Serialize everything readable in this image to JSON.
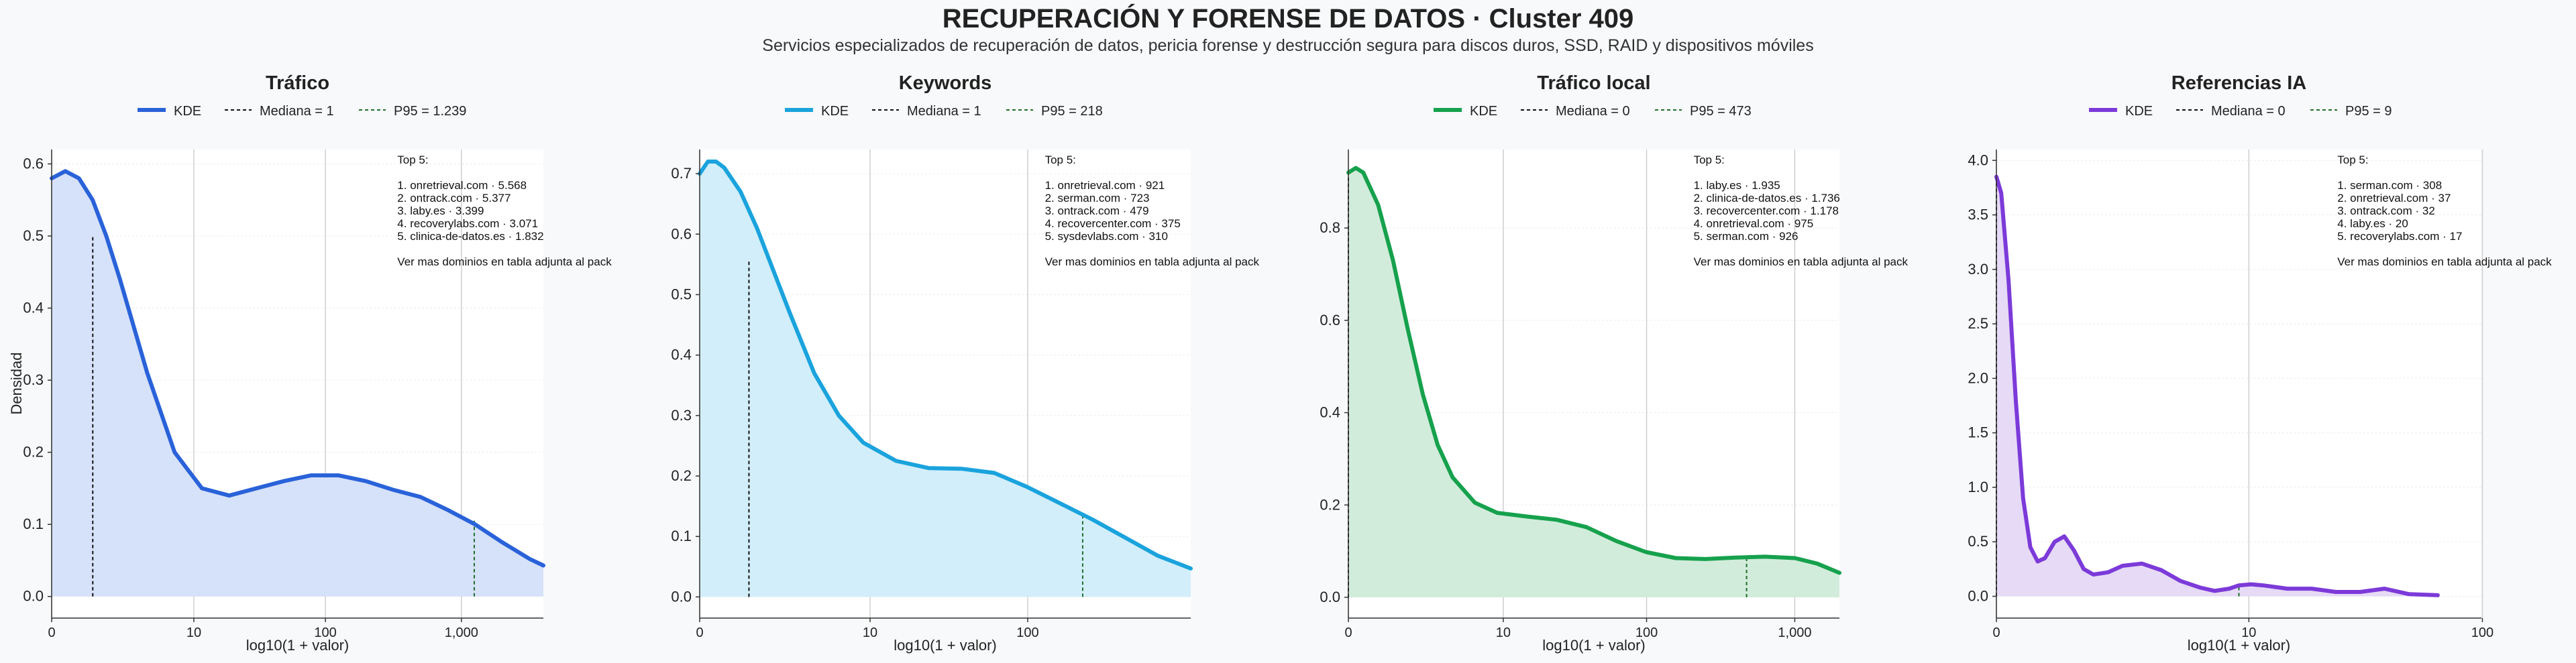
{
  "title": "RECUPERACIÓN Y FORENSE DE DATOS · Cluster 409",
  "subtitle": "Servicios especializados de recuperación de datos, pericia forense y destrucción segura para discos duros, SSD, RAID y dispositivos móviles",
  "colors": {
    "trafico": "#2962d9",
    "keywords": "#1aa3dd",
    "local": "#16a14d",
    "ia": "#7c3ad9"
  },
  "chart_data": [
    {
      "type": "area",
      "title": "Tráfico",
      "xlabel": "log10(1 + valor)",
      "ylabel": "Densidad",
      "color": "#2962d9",
      "fill": "#d6e1fa",
      "xlim": [
        0,
        3.6
      ],
      "ylim": [
        -0.03,
        0.62
      ],
      "x_ticks": [
        {
          "v": 0,
          "label": "0"
        },
        {
          "v": 1.041,
          "label": "10"
        },
        {
          "v": 2.004,
          "label": "100"
        },
        {
          "v": 3.0,
          "label": "1,000"
        }
      ],
      "y_ticks": [
        {
          "v": 0,
          "label": "0.0"
        },
        {
          "v": 0.1,
          "label": "0.1"
        },
        {
          "v": 0.2,
          "label": "0.2"
        },
        {
          "v": 0.3,
          "label": "0.3"
        },
        {
          "v": 0.4,
          "label": "0.4"
        },
        {
          "v": 0.5,
          "label": "0.5"
        },
        {
          "v": 0.6,
          "label": "0.6"
        }
      ],
      "x": [
        0,
        0.1,
        0.2,
        0.3,
        0.4,
        0.5,
        0.7,
        0.9,
        1.1,
        1.3,
        1.5,
        1.7,
        1.9,
        2.1,
        2.3,
        2.5,
        2.7,
        2.9,
        3.1,
        3.3,
        3.5,
        3.6
      ],
      "y": [
        0.58,
        0.59,
        0.58,
        0.55,
        0.5,
        0.44,
        0.31,
        0.2,
        0.15,
        0.14,
        0.15,
        0.16,
        0.168,
        0.168,
        0.16,
        0.148,
        0.138,
        0.12,
        0.1,
        0.075,
        0.052,
        0.043
      ],
      "median": {
        "label": "Mediana = 1",
        "x": 0.301,
        "y": 0.502
      },
      "p95": {
        "label": "P95 = 1.239",
        "x": 3.094,
        "y": 0.108
      },
      "legend": [
        "KDE"
      ],
      "top5_title": "Top 5:",
      "top5": [
        "1. onretrieval.com · 5.568",
        "2. ontrack.com · 5.377",
        "3. laby.es · 3.399",
        "4. recoverylabs.com · 3.071",
        "5. clinica-de-datos.es · 1.832"
      ],
      "footnote": "Ver mas dominios en tabla adjunta al pack"
    },
    {
      "type": "area",
      "title": "Keywords",
      "xlabel": "log10(1 + valor)",
      "ylabel": "",
      "color": "#1aa3dd",
      "fill": "#d2eefa",
      "xlim": [
        0,
        3.0
      ],
      "ylim": [
        -0.035,
        0.74
      ],
      "x_ticks": [
        {
          "v": 0,
          "label": "0"
        },
        {
          "v": 1.041,
          "label": "10"
        },
        {
          "v": 2.004,
          "label": "100"
        }
      ],
      "y_ticks": [
        {
          "v": 0,
          "label": "0.0"
        },
        {
          "v": 0.1,
          "label": "0.1"
        },
        {
          "v": 0.2,
          "label": "0.2"
        },
        {
          "v": 0.3,
          "label": "0.3"
        },
        {
          "v": 0.4,
          "label": "0.4"
        },
        {
          "v": 0.5,
          "label": "0.5"
        },
        {
          "v": 0.6,
          "label": "0.6"
        },
        {
          "v": 0.7,
          "label": "0.7"
        }
      ],
      "x": [
        0,
        0.05,
        0.1,
        0.15,
        0.25,
        0.35,
        0.45,
        0.55,
        0.7,
        0.85,
        1.0,
        1.2,
        1.4,
        1.6,
        1.8,
        2.0,
        2.2,
        2.4,
        2.6,
        2.8,
        3.0
      ],
      "y": [
        0.7,
        0.72,
        0.72,
        0.71,
        0.67,
        0.61,
        0.54,
        0.47,
        0.37,
        0.3,
        0.255,
        0.225,
        0.213,
        0.212,
        0.205,
        0.182,
        0.155,
        0.128,
        0.098,
        0.068,
        0.047
      ],
      "median": {
        "label": "Mediana = 1",
        "x": 0.301,
        "y": 0.556
      },
      "p95": {
        "label": "P95 = 218",
        "x": 2.34,
        "y": 0.136
      },
      "legend": [
        "KDE"
      ],
      "top5_title": "Top 5:",
      "top5": [
        "1. onretrieval.com · 921",
        "2. serman.com · 723",
        "3. ontrack.com · 479",
        "4. recovercenter.com · 375",
        "5. sysdevlabs.com · 310"
      ],
      "footnote": "Ver mas dominios en tabla adjunta al pack"
    },
    {
      "type": "area",
      "title": "Tráfico local",
      "xlabel": "log10(1 + valor)",
      "ylabel": "",
      "color": "#16a14d",
      "fill": "#d2ecdb",
      "xlim": [
        0,
        3.3
      ],
      "ylim": [
        -0.045,
        0.97
      ],
      "x_ticks": [
        {
          "v": 0,
          "label": "0"
        },
        {
          "v": 1.041,
          "label": "10"
        },
        {
          "v": 2.004,
          "label": "100"
        },
        {
          "v": 3.0,
          "label": "1,000"
        }
      ],
      "y_ticks": [
        {
          "v": 0,
          "label": "0.0"
        },
        {
          "v": 0.2,
          "label": "0.2"
        },
        {
          "v": 0.4,
          "label": "0.4"
        },
        {
          "v": 0.6,
          "label": "0.6"
        },
        {
          "v": 0.8,
          "label": "0.8"
        }
      ],
      "x": [
        0,
        0.05,
        0.1,
        0.2,
        0.3,
        0.4,
        0.5,
        0.6,
        0.7,
        0.85,
        1.0,
        1.2,
        1.4,
        1.6,
        1.8,
        2.0,
        2.2,
        2.4,
        2.6,
        2.8,
        3.0,
        3.15,
        3.3
      ],
      "y": [
        0.92,
        0.93,
        0.92,
        0.85,
        0.73,
        0.58,
        0.44,
        0.33,
        0.26,
        0.205,
        0.183,
        0.175,
        0.168,
        0.152,
        0.122,
        0.098,
        0.085,
        0.083,
        0.086,
        0.088,
        0.085,
        0.073,
        0.053
      ],
      "median": {
        "label": "Mediana = 0",
        "x": 0,
        "y": 0.92
      },
      "p95": {
        "label": "P95 = 473",
        "x": 2.676,
        "y": 0.087
      },
      "legend": [
        "KDE"
      ],
      "top5_title": "Top 5:",
      "top5": [
        "1. laby.es · 1.935",
        "2. clinica-de-datos.es · 1.736",
        "3. recovercenter.com · 1.178",
        "4. onretrieval.com · 975",
        "5. serman.com · 926"
      ],
      "footnote": "Ver mas dominios en tabla adjunta al pack"
    },
    {
      "type": "area",
      "title": "Referencias IA",
      "xlabel": "log10(1 + valor)",
      "ylabel": "",
      "color": "#7c3ad9",
      "fill": "#e6daf6",
      "xlim": [
        0,
        2.0
      ],
      "ylim": [
        -0.2,
        4.1
      ],
      "x_ticks": [
        {
          "v": 0,
          "label": "0"
        },
        {
          "v": 1.041,
          "label": "10"
        },
        {
          "v": 2.004,
          "label": "100"
        }
      ],
      "y_ticks": [
        {
          "v": 0,
          "label": "0.0"
        },
        {
          "v": 0.5,
          "label": "0.5"
        },
        {
          "v": 1.0,
          "label": "1.0"
        },
        {
          "v": 1.5,
          "label": "1.5"
        },
        {
          "v": 2.0,
          "label": "2.0"
        },
        {
          "v": 2.5,
          "label": "2.5"
        },
        {
          "v": 3.0,
          "label": "3.0"
        },
        {
          "v": 3.5,
          "label": "3.5"
        },
        {
          "v": 4.0,
          "label": "4.0"
        }
      ],
      "x": [
        0,
        0.02,
        0.05,
        0.08,
        0.11,
        0.14,
        0.17,
        0.2,
        0.24,
        0.28,
        0.32,
        0.36,
        0.4,
        0.46,
        0.52,
        0.6,
        0.68,
        0.76,
        0.84,
        0.9,
        0.96,
        1.0,
        1.05,
        1.1,
        1.2,
        1.3,
        1.4,
        1.5,
        1.6,
        1.7,
        1.82
      ],
      "y": [
        3.85,
        3.7,
        2.9,
        1.8,
        0.9,
        0.45,
        0.32,
        0.35,
        0.5,
        0.55,
        0.42,
        0.25,
        0.2,
        0.22,
        0.28,
        0.3,
        0.24,
        0.14,
        0.08,
        0.05,
        0.07,
        0.1,
        0.11,
        0.1,
        0.07,
        0.07,
        0.04,
        0.04,
        0.07,
        0.02,
        0.01
      ],
      "median": {
        "label": "Mediana = 0",
        "x": 0,
        "y": 3.85
      },
      "p95": {
        "label": "P95 = 9",
        "x": 1.0,
        "y": 0.1
      },
      "legend": [
        "KDE"
      ],
      "top5_title": "Top 5:",
      "top5": [
        "1. serman.com · 308",
        "2. onretrieval.com · 37",
        "3. ontrack.com · 32",
        "4. laby.es · 20",
        "5. recoverylabs.com · 17"
      ],
      "footnote": "Ver mas dominios en tabla adjunta al pack"
    }
  ]
}
